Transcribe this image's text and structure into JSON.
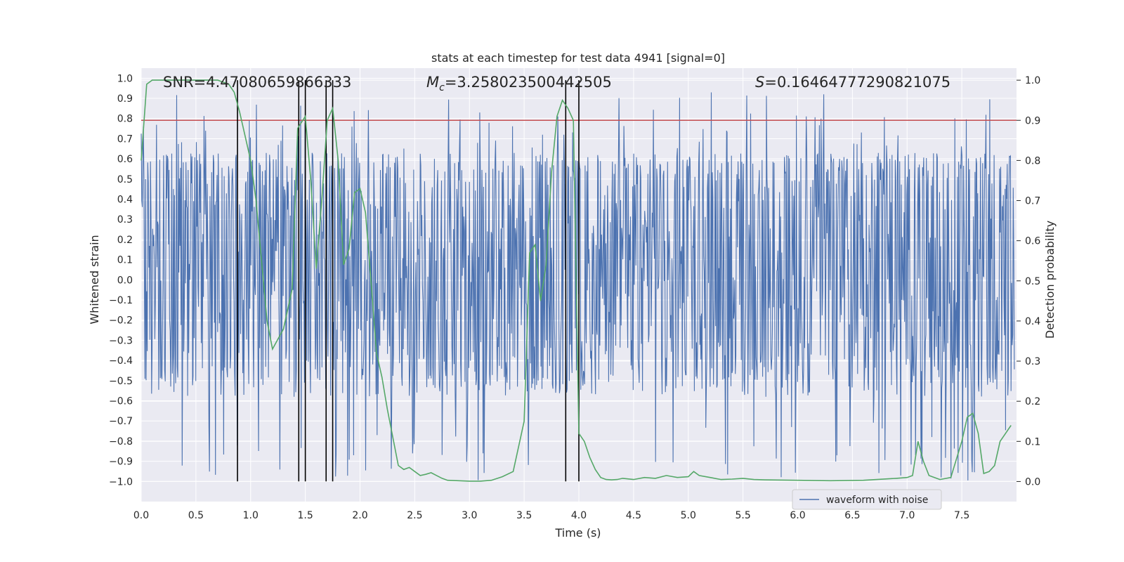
{
  "chart_data": {
    "type": "line",
    "title": "stats at each timestep for test data 4941 [signal=0]",
    "xlabel": "Time (s)",
    "ylabel_left": "Whitened strain",
    "ylabel_right": "Detection probability",
    "xlim": [
      0.0,
      8.0
    ],
    "ylim_left": [
      -1.1,
      1.05
    ],
    "ylim_right": [
      -0.05,
      1.03
    ],
    "xticks": [
      "0.0",
      "0.5",
      "1.0",
      "1.5",
      "2.0",
      "2.5",
      "3.0",
      "3.5",
      "4.0",
      "4.5",
      "5.0",
      "5.5",
      "6.0",
      "6.5",
      "7.0",
      "7.5"
    ],
    "xtick_values": [
      0.0,
      0.5,
      1.0,
      1.5,
      2.0,
      2.5,
      3.0,
      3.5,
      4.0,
      4.5,
      5.0,
      5.5,
      6.0,
      6.5,
      7.0,
      7.5
    ],
    "yticks_left": [
      "1.0",
      "0.9",
      "0.8",
      "0.7",
      "0.6",
      "0.5",
      "0.4",
      "0.3",
      "0.2",
      "0.1",
      "0.0",
      "−0.1",
      "−0.2",
      "−0.3",
      "−0.4",
      "−0.5",
      "−0.6",
      "−0.7",
      "−0.8",
      "−0.9",
      "−1.0"
    ],
    "ytick_left_values": [
      1.0,
      0.9,
      0.8,
      0.7,
      0.6,
      0.5,
      0.4,
      0.3,
      0.2,
      0.1,
      0.0,
      -0.1,
      -0.2,
      -0.3,
      -0.4,
      -0.5,
      -0.6,
      -0.7,
      -0.8,
      -0.9,
      -1.0
    ],
    "yticks_right": [
      "1.0",
      "0.9",
      "0.8",
      "0.7",
      "0.6",
      "0.5",
      "0.4",
      "0.3",
      "0.2",
      "0.1",
      "0.0"
    ],
    "ytick_right_values": [
      1.0,
      0.9,
      0.8,
      0.7,
      0.6,
      0.5,
      0.4,
      0.3,
      0.2,
      0.1,
      0.0
    ],
    "threshold": 0.9,
    "detection_times": [
      0.88,
      1.44,
      1.5,
      1.69,
      1.75,
      3.88,
      4.0
    ],
    "waveform": {
      "name": "waveform with noise",
      "sample_count": 1600,
      "noise_band": [
        -0.43,
        0.53
      ],
      "peak_range": [
        -1.0,
        0.93
      ]
    },
    "detection_probability": {
      "x": [
        0.0,
        0.05,
        0.1,
        0.2,
        0.3,
        0.5,
        0.7,
        0.8,
        0.85,
        0.9,
        0.95,
        1.0,
        1.05,
        1.1,
        1.15,
        1.2,
        1.3,
        1.38,
        1.43,
        1.5,
        1.55,
        1.6,
        1.65,
        1.7,
        1.75,
        1.8,
        1.85,
        1.9,
        1.95,
        2.0,
        2.05,
        2.1,
        2.15,
        2.2,
        2.25,
        2.3,
        2.35,
        2.4,
        2.45,
        2.5,
        2.55,
        2.6,
        2.65,
        2.7,
        2.75,
        2.8,
        2.9,
        3.0,
        3.1,
        3.2,
        3.3,
        3.4,
        3.5,
        3.55,
        3.6,
        3.65,
        3.7,
        3.75,
        3.8,
        3.85,
        3.9,
        3.95,
        4.0,
        4.05,
        4.1,
        4.15,
        4.2,
        4.25,
        4.3,
        4.35,
        4.4,
        4.5,
        4.6,
        4.7,
        4.8,
        4.9,
        5.0,
        5.05,
        5.1,
        5.2,
        5.3,
        5.4,
        5.5,
        5.6,
        5.7,
        6.0,
        6.3,
        6.6,
        6.9,
        7.0,
        7.05,
        7.1,
        7.15,
        7.2,
        7.25,
        7.3,
        7.4,
        7.5,
        7.55,
        7.6,
        7.65,
        7.7,
        7.75,
        7.8,
        7.85,
        7.9,
        7.95
      ],
      "y": [
        0.8,
        0.99,
        1.0,
        1.0,
        1.0,
        1.0,
        1.0,
        0.99,
        0.97,
        0.92,
        0.86,
        0.8,
        0.7,
        0.55,
        0.4,
        0.33,
        0.38,
        0.48,
        0.88,
        0.91,
        0.75,
        0.53,
        0.7,
        0.9,
        0.93,
        0.8,
        0.54,
        0.58,
        0.72,
        0.73,
        0.67,
        0.5,
        0.32,
        0.26,
        0.18,
        0.11,
        0.04,
        0.03,
        0.035,
        0.025,
        0.015,
        0.018,
        0.022,
        0.015,
        0.008,
        0.003,
        0.002,
        0.001,
        0.001,
        0.003,
        0.012,
        0.025,
        0.15,
        0.57,
        0.59,
        0.45,
        0.54,
        0.77,
        0.91,
        0.95,
        0.93,
        0.9,
        0.12,
        0.1,
        0.06,
        0.03,
        0.01,
        0.005,
        0.004,
        0.005,
        0.008,
        0.005,
        0.01,
        0.008,
        0.015,
        0.01,
        0.012,
        0.025,
        0.015,
        0.01,
        0.005,
        0.006,
        0.008,
        0.005,
        0.004,
        0.003,
        0.002,
        0.003,
        0.008,
        0.01,
        0.015,
        0.1,
        0.05,
        0.015,
        0.01,
        0.005,
        0.01,
        0.1,
        0.16,
        0.17,
        0.12,
        0.02,
        0.025,
        0.04,
        0.1,
        0.12,
        0.14
      ]
    },
    "legend": {
      "label": "waveform with noise",
      "position": "lower-right"
    },
    "annotations": {
      "snr": "SNR=4.47080659866333",
      "mc_symbol": "M",
      "mc_sub": "c",
      "mc_value": "=3.258023500442505",
      "s_symbol": "S",
      "s_value": "=0.16464777290821075"
    },
    "colors": {
      "background": "#eaeaf2",
      "grid": "#ffffff",
      "waveform": "#4c72b0",
      "probability": "#55a868",
      "threshold": "#c44e52",
      "marker": "#000000",
      "text": "#262626"
    }
  }
}
